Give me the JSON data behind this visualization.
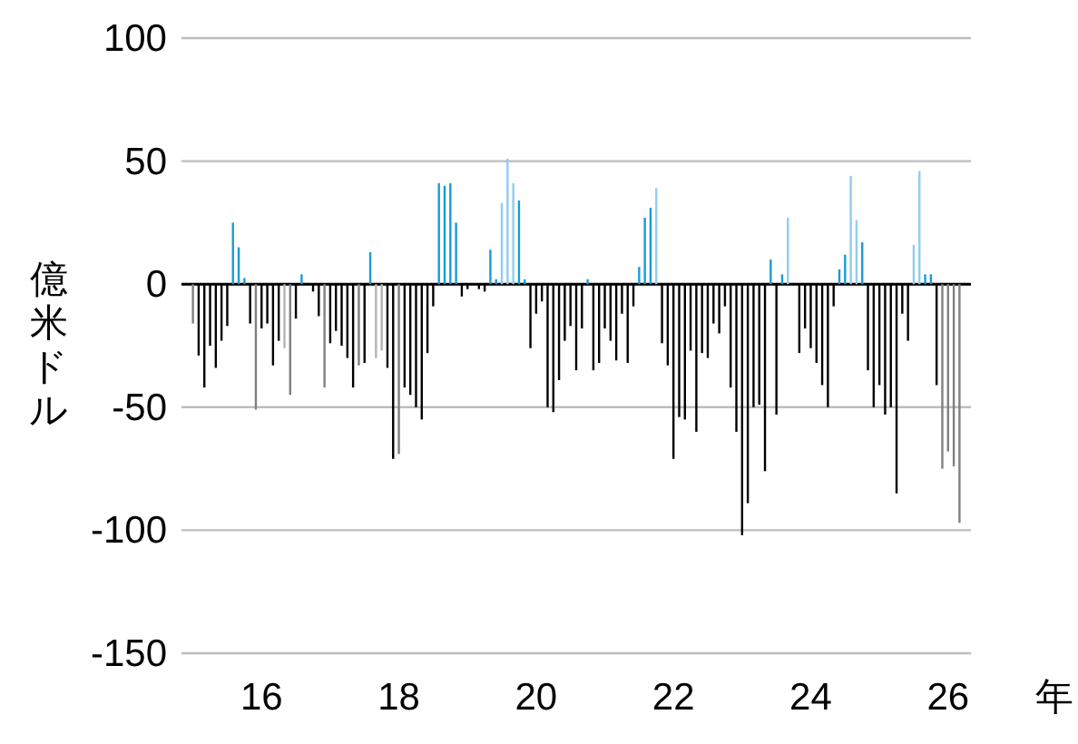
{
  "chart_data": {
    "type": "bar",
    "ylabel": "億米ドル",
    "xlabel": "年",
    "grid": "y",
    "ylim": [
      -150,
      100
    ],
    "yticks": [
      -150,
      -100,
      -50,
      0,
      50,
      100
    ],
    "xlim": [
      "2014-11",
      "2026-05"
    ],
    "xticks": [
      {
        "value": "2016-01",
        "label": "16"
      },
      {
        "value": "2018-01",
        "label": "18"
      },
      {
        "value": "2020-01",
        "label": "20"
      },
      {
        "value": "2022-01",
        "label": "22"
      },
      {
        "value": "2024-01",
        "label": "24"
      },
      {
        "value": "2026-01",
        "label": "26"
      }
    ],
    "x": [
      "2015-01",
      "2015-02",
      "2015-03",
      "2015-04",
      "2015-05",
      "2015-06",
      "2015-07",
      "2015-08",
      "2015-09",
      "2015-10",
      "2015-11",
      "2015-12",
      "2016-01",
      "2016-02",
      "2016-03",
      "2016-04",
      "2016-05",
      "2016-06",
      "2016-07",
      "2016-08",
      "2016-09",
      "2016-10",
      "2016-11",
      "2016-12",
      "2017-01",
      "2017-02",
      "2017-03",
      "2017-04",
      "2017-05",
      "2017-06",
      "2017-07",
      "2017-08",
      "2017-09",
      "2017-10",
      "2017-11",
      "2017-12",
      "2018-01",
      "2018-02",
      "2018-03",
      "2018-04",
      "2018-05",
      "2018-06",
      "2018-07",
      "2018-08",
      "2018-09",
      "2018-10",
      "2018-11",
      "2018-12",
      "2019-01",
      "2019-02",
      "2019-03",
      "2019-04",
      "2019-05",
      "2019-06",
      "2019-07",
      "2019-08",
      "2019-09",
      "2019-10",
      "2019-11",
      "2019-12",
      "2020-01",
      "2020-02",
      "2020-03",
      "2020-04",
      "2020-05",
      "2020-06",
      "2020-07",
      "2020-08",
      "2020-09",
      "2020-10",
      "2020-11",
      "2020-12",
      "2021-01",
      "2021-02",
      "2021-03",
      "2021-04",
      "2021-05",
      "2021-06",
      "2021-07",
      "2021-08",
      "2021-09",
      "2021-10",
      "2021-11",
      "2021-12",
      "2022-01",
      "2022-02",
      "2022-03",
      "2022-04",
      "2022-05",
      "2022-06",
      "2022-07",
      "2022-08",
      "2022-09",
      "2022-10",
      "2022-11",
      "2022-12",
      "2023-01",
      "2023-02",
      "2023-03",
      "2023-04",
      "2023-05",
      "2023-06",
      "2023-07",
      "2023-08",
      "2023-09",
      "2023-10",
      "2023-11",
      "2023-12",
      "2024-01",
      "2024-02",
      "2024-03",
      "2024-04",
      "2024-05",
      "2024-06",
      "2024-07",
      "2024-08",
      "2024-09",
      "2024-10",
      "2024-11",
      "2024-12",
      "2025-01",
      "2025-02",
      "2025-03",
      "2025-04",
      "2025-05",
      "2025-06",
      "2025-07",
      "2025-08",
      "2025-09",
      "2025-10",
      "2025-11",
      "2025-12",
      "2026-01",
      "2026-02",
      "2026-03"
    ],
    "values": [
      -16,
      -29,
      -42,
      -25,
      -34,
      -23,
      -17,
      25,
      15,
      2.5,
      -16,
      -51,
      -18,
      -16,
      -33,
      -23,
      -26,
      -45,
      -14,
      4,
      null,
      -3,
      -13,
      -42,
      -24,
      -19,
      -25,
      -30,
      -42,
      -33,
      -32,
      13,
      -30,
      -27,
      -34,
      -71,
      -69,
      -42,
      -45,
      -50,
      -55,
      -28,
      -9,
      41,
      40,
      41,
      25,
      -5,
      -2,
      null,
      -2,
      -3,
      14,
      2,
      33,
      51,
      41,
      34,
      2,
      -26,
      -12,
      -7,
      -50,
      -52,
      -39,
      -23,
      -17,
      -35,
      -18,
      2,
      -35,
      -32,
      -18,
      -23,
      -31,
      -12,
      -32,
      -9,
      7,
      27,
      31,
      39,
      -24,
      -33,
      -71,
      -54,
      -55,
      -27,
      -60,
      -28,
      -30,
      -16,
      -20,
      -9,
      -42,
      -60,
      -102,
      -89,
      -50,
      -49,
      -76,
      10,
      -53,
      4,
      27,
      null,
      -28,
      -18,
      -26,
      -32,
      -41,
      -50,
      -9,
      6,
      12,
      44,
      26,
      17,
      -35,
      -50,
      -41,
      -53,
      -50,
      -85,
      -12,
      -23,
      16,
      46,
      4,
      4,
      -41,
      -75,
      -68,
      -74,
      -97
    ],
    "colors": [
      "#808080",
      "#000000",
      "#000000",
      "#000000",
      "#000000",
      "#000000",
      "#000000",
      "#1a9bd7",
      "#1a9bd7",
      "#1a9bd7",
      "#000000",
      "#808080",
      "#000000",
      "#000000",
      "#000000",
      "#000000",
      "#b3b3b3",
      "#808080",
      "#000000",
      "#1a9bd7",
      "#000000",
      "#000000",
      "#000000",
      "#808080",
      "#000000",
      "#000000",
      "#000000",
      "#000000",
      "#000000",
      "#808080",
      "#000000",
      "#1a9bd7",
      "#b3b3b3",
      "#b3b3b3",
      "#000000",
      "#000000",
      "#808080",
      "#000000",
      "#000000",
      "#000000",
      "#000000",
      "#000000",
      "#000000",
      "#1a9bd7",
      "#1a9bd7",
      "#1a9bd7",
      "#1a9bd7",
      "#000000",
      "#000000",
      "#000000",
      "#000000",
      "#000000",
      "#1a9bd7",
      "#1a9bd7",
      "#8fcdee",
      "#8fcdee",
      "#8fcdee",
      "#1a9bd7",
      "#1a9bd7",
      "#000000",
      "#000000",
      "#000000",
      "#000000",
      "#000000",
      "#000000",
      "#000000",
      "#000000",
      "#000000",
      "#000000",
      "#1a9bd7",
      "#000000",
      "#000000",
      "#000000",
      "#000000",
      "#000000",
      "#000000",
      "#000000",
      "#000000",
      "#1a9bd7",
      "#1a9bd7",
      "#1a9bd7",
      "#8fcdee",
      "#000000",
      "#000000",
      "#000000",
      "#000000",
      "#000000",
      "#000000",
      "#000000",
      "#000000",
      "#000000",
      "#000000",
      "#000000",
      "#000000",
      "#000000",
      "#000000",
      "#000000",
      "#000000",
      "#000000",
      "#000000",
      "#000000",
      "#1a9bd7",
      "#000000",
      "#1a9bd7",
      "#8fcdee",
      "#000000",
      "#000000",
      "#000000",
      "#000000",
      "#000000",
      "#000000",
      "#000000",
      "#000000",
      "#1a9bd7",
      "#1a9bd7",
      "#8fcdee",
      "#8fcdee",
      "#1a9bd7",
      "#000000",
      "#000000",
      "#000000",
      "#000000",
      "#000000",
      "#000000",
      "#000000",
      "#000000",
      "#8fcdee",
      "#8fcdee",
      "#1a9bd7",
      "#1a9bd7",
      "#000000",
      "#808080",
      "#808080",
      "#808080",
      "#808080"
    ]
  }
}
